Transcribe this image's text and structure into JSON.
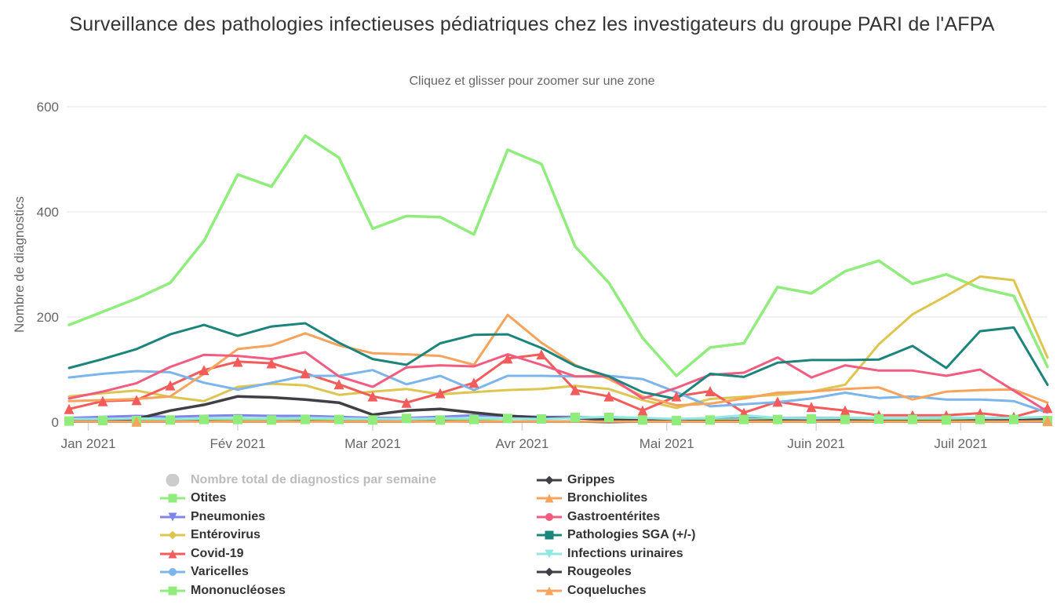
{
  "title": "Surveillance des pathologies infectieuses pédiatriques chez les investigateurs du groupe PARI de l'AFPA",
  "subtitle": "Cliquez et glisser pour zoomer sur une zone",
  "y_axis": {
    "title": "Nombre de diagnostics",
    "ticks": [
      0,
      200,
      400,
      600
    ]
  },
  "x_axis": {
    "days_per_point": 7,
    "months": [
      {
        "label": "Jan 2021",
        "day": 4
      },
      {
        "label": "Fév 2021",
        "day": 35
      },
      {
        "label": "Mar 2021",
        "day": 63
      },
      {
        "label": "Avr 2021",
        "day": 94
      },
      {
        "label": "Mai 2021",
        "day": 124
      },
      {
        "label": "Juin 2021",
        "day": 155
      },
      {
        "label": "Juil 2021",
        "day": 185
      }
    ]
  },
  "colors": {
    "grid": "#e6e6e6",
    "axis": "#ccd6eb",
    "tick_label": "#666666",
    "legend_text": "#333333",
    "legend_disabled_text": "#bcbcbc"
  },
  "chart_data": {
    "type": "line",
    "x_unit": "week",
    "n_points": 30,
    "x_range_note": "semaines hebdomadaires, fin décembre 2020 à mi-juillet 2021",
    "ylim": [
      0,
      600
    ],
    "legend_position": "bottom-two-columns",
    "grid": "horizontal",
    "series": [
      {
        "name": "Nombre total de diagnostics par semaine",
        "color": "#cccccc",
        "symbol": "circle",
        "hidden": true,
        "markers": "none",
        "values": []
      },
      {
        "name": "Otites",
        "color": "#90ed7d",
        "symbol": "square",
        "markers": "none",
        "width": 3.5,
        "values": [
          185,
          210,
          235,
          265,
          345,
          471,
          448,
          545,
          503,
          368,
          392,
          390,
          357,
          518,
          491,
          334,
          265,
          160,
          88,
          142,
          150,
          257,
          245,
          287,
          307,
          263,
          281,
          255,
          240,
          105
        ]
      },
      {
        "name": "Pneumonies",
        "color": "#8085e9",
        "symbol": "triangle-down",
        "markers": "none",
        "values": [
          8,
          10,
          12,
          10,
          12,
          13,
          12,
          12,
          10,
          8,
          8,
          10,
          13,
          12,
          10,
          10,
          8,
          7,
          5,
          6,
          7,
          8,
          8,
          8,
          7,
          7,
          6,
          8,
          8,
          9
        ]
      },
      {
        "name": "Entérovirus",
        "color": "#ddc54f",
        "symbol": "diamond",
        "markers": "none",
        "values": [
          49,
          55,
          60,
          48,
          40,
          67,
          73,
          70,
          52,
          58,
          63,
          53,
          57,
          61,
          63,
          69,
          63,
          42,
          27,
          44,
          48,
          52,
          58,
          71,
          148,
          205,
          240,
          277,
          270,
          123
        ]
      },
      {
        "name": "Covid-19",
        "color": "#f45b5b",
        "symbol": "triangle",
        "markers": "all",
        "values": [
          25,
          40,
          42,
          70,
          99,
          115,
          112,
          93,
          72,
          49,
          37,
          55,
          75,
          121,
          129,
          61,
          49,
          22,
          49,
          59,
          18,
          39,
          29,
          22,
          13,
          13,
          13,
          17,
          10,
          27
        ]
      },
      {
        "name": "Varicelles",
        "color": "#7cb5ec",
        "symbol": "circle",
        "markers": "none",
        "values": [
          85,
          92,
          97,
          95,
          75,
          62,
          75,
          88,
          88,
          99,
          72,
          88,
          61,
          88,
          88,
          87,
          88,
          82,
          57,
          30,
          34,
          38,
          45,
          56,
          46,
          49,
          43,
          43,
          40,
          18
        ]
      },
      {
        "name": "Mononucléoses",
        "color": "#90ed7d",
        "symbol": "square",
        "markers": "all",
        "values": [
          2,
          3,
          3,
          4,
          5,
          5,
          4,
          5,
          5,
          4,
          7,
          4,
          5,
          7,
          6,
          9,
          9,
          4,
          3,
          4,
          5,
          5,
          6,
          5,
          6,
          5,
          4,
          5,
          5,
          3
        ]
      },
      {
        "name": "Grippes",
        "color": "#3f3f45",
        "symbol": "diamond",
        "markers": "none",
        "width": 3.5,
        "values": [
          1,
          2,
          6,
          22,
          33,
          49,
          47,
          43,
          37,
          14,
          22,
          25,
          18,
          12,
          8,
          8,
          4,
          3,
          2,
          2,
          2,
          3,
          3,
          3,
          2,
          2,
          2,
          3,
          3,
          5
        ]
      },
      {
        "name": "Bronchiolites",
        "color": "#f7a35c",
        "symbol": "triangle",
        "markers": "none",
        "values": [
          40,
          42,
          44,
          49,
          92,
          139,
          146,
          169,
          146,
          131,
          129,
          126,
          109,
          204,
          151,
          109,
          82,
          49,
          32,
          35,
          45,
          56,
          58,
          63,
          66,
          43,
          58,
          61,
          62,
          37
        ]
      },
      {
        "name": "Gastroentérites",
        "color": "#f15c80",
        "symbol": "circle",
        "markers": "none",
        "values": [
          45,
          58,
          74,
          105,
          128,
          126,
          120,
          133,
          87,
          67,
          104,
          108,
          106,
          129,
          109,
          87,
          87,
          45,
          65,
          90,
          94,
          123,
          85,
          108,
          98,
          98,
          88,
          100,
          60,
          20
        ]
      },
      {
        "name": "Pathologies SGA (+/-)",
        "color": "#1b857c",
        "symbol": "square",
        "markers": "none",
        "values": [
          103,
          120,
          139,
          167,
          185,
          164,
          182,
          188,
          151,
          120,
          109,
          150,
          166,
          167,
          141,
          107,
          87,
          57,
          44,
          92,
          86,
          113,
          118,
          118,
          119,
          145,
          103,
          173,
          180,
          71
        ]
      },
      {
        "name": "Infections urinaires",
        "color": "#91e8e1",
        "symbol": "triangle-down",
        "markers": "none",
        "values": [
          6,
          6,
          7,
          6,
          7,
          8,
          7,
          8,
          7,
          6,
          6,
          7,
          8,
          7,
          6,
          8,
          10,
          8,
          6,
          8,
          13,
          8,
          7,
          8,
          8,
          8,
          9,
          8,
          8,
          10
        ]
      },
      {
        "name": "Rougeoles",
        "color": "#3f3f45",
        "symbol": "diamond",
        "markers": "none",
        "values": [
          1,
          1,
          1,
          1,
          2,
          1,
          1,
          2,
          1,
          1,
          1,
          2,
          1,
          1,
          1,
          1,
          0,
          1,
          1,
          1,
          1,
          1,
          1,
          1,
          1,
          1,
          1,
          1,
          1,
          1
        ]
      },
      {
        "name": "Coqueluches",
        "color": "#f7a35c",
        "symbol": "triangle",
        "markers": [
          2,
          29
        ],
        "values": [
          1,
          1,
          1,
          1,
          1,
          1,
          1,
          1,
          1,
          1,
          1,
          1,
          1,
          1,
          1,
          1,
          1,
          1,
          1,
          1,
          1,
          1,
          1,
          1,
          1,
          1,
          1,
          1,
          1,
          2
        ]
      }
    ]
  }
}
